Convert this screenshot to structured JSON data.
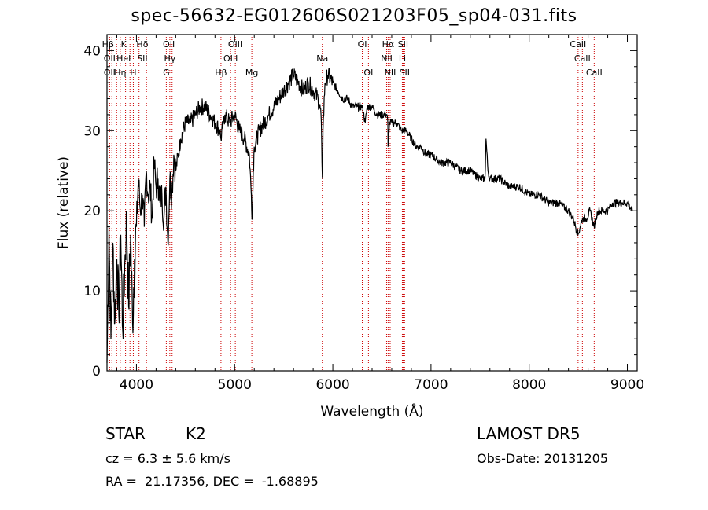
{
  "header": {
    "title": "spec-56632-EG012606S021203F05_sp04-031.fits"
  },
  "footer": {
    "class": "STAR",
    "subclass": "K2",
    "survey": "LAMOST DR5",
    "cz": "cz = 6.3 ± 5.6 km/s",
    "obs_date": "Obs-Date: 20131205",
    "coords": "RA =  21.17356, DEC =  -1.68895"
  },
  "chart_data": {
    "type": "line",
    "title": "spec-56632-EG012606S021203F05_sp04-031.fits",
    "xlabel": "Wavelength (Å)",
    "ylabel": "Flux (relative)",
    "xlim": [
      3700,
      9100
    ],
    "ylim": [
      0,
      42
    ],
    "xticks": [
      4000,
      5000,
      6000,
      7000,
      8000,
      9000
    ],
    "yticks": [
      0,
      10,
      20,
      30,
      40
    ],
    "grid": false,
    "line_color": "#000000",
    "marker_color": "#cc0000",
    "series": [
      {
        "x": [
          3700,
          3720,
          3740,
          3760,
          3780,
          3800,
          3820,
          3840,
          3860,
          3880,
          3900,
          3920,
          3940,
          3960,
          3980,
          4000,
          4020,
          4040,
          4060,
          4080,
          4100,
          4120,
          4140,
          4160,
          4180,
          4200,
          4220,
          4240,
          4260,
          4280,
          4300,
          4320,
          4340,
          4360,
          4380,
          4400,
          4450,
          4500,
          4550,
          4600,
          4650,
          4700,
          4750,
          4800,
          4850,
          4860,
          4900,
          4950,
          5000,
          5050,
          5100,
          5150,
          5170,
          5180,
          5190,
          5200,
          5250,
          5300,
          5350,
          5400,
          5450,
          5500,
          5550,
          5600,
          5650,
          5700,
          5750,
          5800,
          5850,
          5880,
          5890,
          5895,
          5900,
          5920,
          5950,
          6000,
          6050,
          6100,
          6150,
          6200,
          6250,
          6300,
          6330,
          6350,
          6400,
          6450,
          6500,
          6550,
          6560,
          6563,
          6570,
          6580,
          6600,
          6650,
          6700,
          6750,
          6800,
          6850,
          6900,
          6950,
          7000,
          7100,
          7200,
          7300,
          7400,
          7500,
          7550,
          7560,
          7580,
          7600,
          7700,
          7800,
          7900,
          8000,
          8100,
          8200,
          8300,
          8400,
          8450,
          8498,
          8520,
          8542,
          8580,
          8620,
          8662,
          8700,
          8750,
          8800,
          8850,
          8900,
          8950,
          9000,
          9050
        ],
        "y": [
          1,
          18,
          4,
          16,
          6,
          14,
          7,
          17,
          5,
          13,
          19,
          8,
          17,
          6,
          14,
          18,
          24,
          20,
          22,
          18,
          25,
          22,
          23,
          19,
          26,
          23,
          24,
          21,
          22,
          19,
          23,
          16,
          24,
          22,
          27,
          25,
          29,
          31,
          31,
          32,
          33,
          33,
          32,
          31,
          30,
          29,
          32,
          31,
          32,
          30,
          29,
          27,
          22,
          19,
          25,
          28,
          30,
          31,
          32,
          33,
          34,
          35,
          36,
          37,
          36,
          35,
          36,
          35,
          34,
          32,
          26,
          24,
          30,
          36,
          37,
          36,
          35,
          34,
          34,
          33,
          33,
          33,
          31,
          33,
          33,
          32,
          32,
          32,
          31,
          28,
          30,
          31,
          31,
          31,
          30,
          30,
          29,
          28,
          28,
          27,
          27,
          26,
          26,
          25,
          25,
          24,
          24,
          29,
          25,
          24,
          24,
          23,
          23,
          22,
          22,
          21,
          21,
          20,
          19,
          17,
          18,
          19,
          19,
          20,
          18,
          20,
          20,
          20,
          21,
          21,
          21,
          21,
          20
        ]
      }
    ],
    "annotations": [
      {
        "label": "Hβ",
        "x": 3710,
        "row": 0
      },
      {
        "label": "K",
        "x": 3870,
        "row": 0
      },
      {
        "label": "Hδ",
        "x": 4060,
        "row": 0
      },
      {
        "label": "OII",
        "x": 4330,
        "row": 0
      },
      {
        "label": "OIII",
        "x": 5006,
        "row": 0
      },
      {
        "label": "OI",
        "x": 6300,
        "row": 0
      },
      {
        "label": "Hα",
        "x": 6563,
        "row": 0
      },
      {
        "label": "SII",
        "x": 6716,
        "row": 0
      },
      {
        "label": "CaII",
        "x": 8498,
        "row": 0
      },
      {
        "label": "OII",
        "x": 3727,
        "row": 1
      },
      {
        "label": "HeI",
        "x": 3870,
        "row": 1
      },
      {
        "label": "SII",
        "x": 4060,
        "row": 1
      },
      {
        "label": "Hγ",
        "x": 4340,
        "row": 1
      },
      {
        "label": "OIII",
        "x": 4959,
        "row": 1
      },
      {
        "label": "Na",
        "x": 5893,
        "row": 1
      },
      {
        "label": "NII",
        "x": 6548,
        "row": 1
      },
      {
        "label": "Li",
        "x": 6708,
        "row": 1
      },
      {
        "label": "CaII",
        "x": 8542,
        "row": 1
      },
      {
        "label": "OII",
        "x": 3727,
        "row": 2
      },
      {
        "label": "Hη",
        "x": 3835,
        "row": 2
      },
      {
        "label": "H",
        "x": 3968,
        "row": 2
      },
      {
        "label": "G",
        "x": 4304,
        "row": 2
      },
      {
        "label": "Hβ",
        "x": 4861,
        "row": 2
      },
      {
        "label": "Mg",
        "x": 5175,
        "row": 2
      },
      {
        "label": "OI",
        "x": 6363,
        "row": 2
      },
      {
        "label": "NII",
        "x": 6584,
        "row": 2
      },
      {
        "label": "SII",
        "x": 6731,
        "row": 2
      },
      {
        "label": "CaII",
        "x": 8662,
        "row": 2
      }
    ],
    "marker_lines": [
      3727,
      3750,
      3798,
      3835,
      3889,
      3934,
      3968,
      4026,
      4102,
      4304,
      4340,
      4363,
      4861,
      4959,
      5007,
      5175,
      5893,
      6300,
      6363,
      6548,
      6563,
      6584,
      6708,
      6716,
      6731,
      8498,
      8542,
      8662
    ]
  }
}
